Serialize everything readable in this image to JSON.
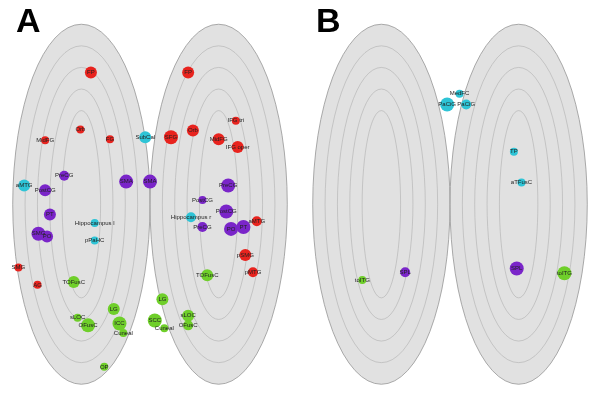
{
  "chart_data": [
    {
      "type": "bubble",
      "title": "A",
      "xlim": [
        0,
        300
      ],
      "ylim": [
        0,
        397
      ],
      "tick_labels": false,
      "grid": false,
      "series": [
        {
          "color": "#e8231e",
          "x": [
            88,
            190,
            77,
            40,
            108,
            172,
            195,
            222,
            240,
            242,
            262,
            250,
            258,
            12,
            32
          ],
          "values": [
            329,
            329,
            270,
            259,
            260,
            262,
            269,
            260,
            279,
            252,
            175,
            140,
            122,
            127,
            109
          ],
          "size": [
            6,
            6,
            4,
            4,
            4,
            7,
            6,
            6,
            4,
            6,
            5,
            6,
            5,
            4,
            4
          ],
          "point_labels": [
            "FP",
            "FP",
            "Orb",
            "MidFG",
            "FG",
            "SFG",
            "Orb",
            "MidFG",
            "IFG tri",
            "IFG oper",
            "aMTG",
            "pSMG",
            "pMTG",
            "SMG",
            "AG"
          ]
        },
        {
          "color": "#2ec4d6",
          "x": [
            145,
            18,
            92,
            193,
            92
          ],
          "values": [
            262,
            212,
            173,
            179,
            155
          ],
          "size": [
            6,
            6,
            4,
            5,
            4
          ],
          "point_labels": [
            "SubCal",
            "aMTG",
            "Hippocampus l",
            "Hippocampus r",
            "pPaHC"
          ]
        },
        {
          "color": "#7a25c9",
          "x": [
            60,
            40,
            33,
            42,
            45,
            125,
            150,
            232,
            205,
            205,
            230,
            235,
            248
          ],
          "values": [
            222,
            207,
            162,
            159,
            182,
            216,
            216,
            212,
            197,
            169,
            185,
            167,
            169
          ],
          "size": [
            5,
            6,
            7,
            6,
            6,
            7,
            7,
            7,
            4,
            5,
            7,
            7,
            7
          ],
          "point_labels": [
            "PreCG",
            "PostCG",
            "SMG",
            "PO",
            "PT",
            "SMA",
            "SMA",
            "PreCG",
            "PostCG",
            "PreCG",
            "PostCG",
            "PO",
            "PT"
          ]
        },
        {
          "color": "#6fcf2a",
          "x": [
            70,
            210,
            112,
            163,
            74,
            85,
            118,
            122,
            155,
            165,
            190,
            190,
            102
          ],
          "values": [
            112,
            119,
            84,
            94,
            75,
            67,
            69,
            59,
            72,
            64,
            77,
            67,
            24
          ],
          "size": [
            6,
            6,
            6,
            6,
            4,
            7,
            7,
            4,
            7,
            4,
            6,
            5,
            4
          ],
          "point_labels": [
            "TOFusC",
            "TOFusC",
            "LG",
            "LG",
            "sLOC",
            "OFusC",
            "ICC",
            "Cuneal",
            "SCC",
            "Cuneal",
            "sLOC",
            "OFusC",
            "OP"
          ]
        }
      ]
    },
    {
      "type": "bubble",
      "title": "B",
      "xlim": [
        0,
        300
      ],
      "ylim": [
        0,
        397
      ],
      "tick_labels": false,
      "grid": false,
      "series": [
        {
          "color": "#2ec4d6",
          "x": [
            160,
            147,
            167,
            217,
            225
          ],
          "values": [
            307,
            296,
            296,
            247,
            215
          ],
          "size": [
            4,
            7,
            5,
            4,
            4
          ],
          "point_labels": [
            "MedFC",
            "PaCiG",
            "PaCiG",
            "TP",
            "aTFusC"
          ]
        },
        {
          "color": "#6fcf2a",
          "x": [
            58,
            270
          ],
          "values": [
            114,
            121
          ],
          "size": [
            4,
            7
          ],
          "point_labels": [
            "toITG",
            "toITG"
          ]
        },
        {
          "color": "#7a25c9",
          "x": [
            103,
            220
          ],
          "values": [
            122,
            126
          ],
          "size": [
            5,
            7
          ],
          "point_labels": [
            "SPL",
            "SPL"
          ]
        }
      ]
    }
  ]
}
